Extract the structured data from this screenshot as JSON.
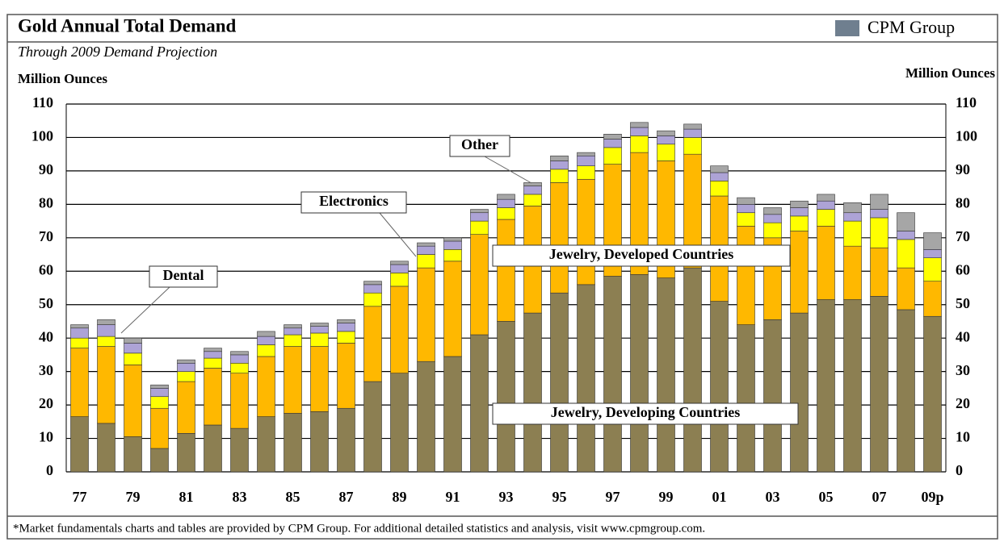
{
  "chart_data": {
    "type": "stacked-bar",
    "title": "Gold Annual Total Demand",
    "logo": "CPM Group",
    "subtitle": "Through 2009 Demand Projection",
    "y_label": "Million Ounces",
    "y2_label": "Million Ounces",
    "footnote": "*Market fundamentals charts and tables are provided by CPM Group. For additional detailed statistics and analysis, visit www.cpmgroup.com.",
    "categories": [
      "77",
      null,
      "79",
      null,
      "81",
      null,
      "83",
      null,
      "85",
      null,
      "87",
      null,
      "89",
      null,
      "91",
      null,
      "93",
      null,
      "95",
      null,
      "97",
      null,
      "99",
      null,
      "01",
      null,
      "03",
      null,
      "05",
      null,
      "07",
      null,
      "09p"
    ],
    "ylim": [
      0,
      110
    ],
    "yticks": [
      0,
      10,
      20,
      30,
      40,
      50,
      60,
      70,
      80,
      90,
      100,
      110
    ],
    "y2lim": [
      0,
      110
    ],
    "y2ticks": [
      0,
      10,
      20,
      30,
      40,
      50,
      60,
      70,
      80,
      90,
      100,
      110
    ],
    "grid": true,
    "series": [
      {
        "name": "Jewelry, Developing Countries",
        "color": "#8c7f52",
        "values": [
          16.5,
          14.5,
          10.5,
          7,
          11.5,
          14,
          13,
          16.5,
          17.5,
          18,
          19,
          27,
          29.5,
          33,
          34.5,
          41,
          45,
          47.5,
          53.5,
          56,
          58.5,
          59,
          58,
          61,
          51,
          44,
          45.5,
          47.5,
          51.5,
          51.5,
          52.5,
          48.5,
          46.5
        ]
      },
      {
        "name": "Jewelry, Developed Countries",
        "color": "#ffb800",
        "values": [
          20.5,
          23,
          21.5,
          12,
          15.5,
          17,
          16.5,
          18,
          20,
          19.5,
          19.5,
          22.5,
          26,
          28,
          28.5,
          30,
          30.5,
          32,
          33,
          31.5,
          33.5,
          36.5,
          35,
          34,
          31.5,
          29.5,
          24.5,
          24.5,
          22,
          16,
          14.5,
          12.5,
          10.5
        ]
      },
      {
        "name": "Electronics",
        "color": "#ffff00",
        "values": [
          3,
          3,
          3.5,
          3.5,
          3,
          3,
          3,
          3.5,
          3.5,
          4,
          3.5,
          4,
          4,
          4,
          3.5,
          4,
          3.5,
          3.5,
          4,
          4,
          5,
          5,
          5,
          5,
          4.5,
          4,
          4.5,
          4.5,
          5,
          7.5,
          9,
          8.5,
          7
        ]
      },
      {
        "name": "Dental",
        "color": "#ada3d6",
        "values": [
          3,
          3.5,
          3,
          2.5,
          2.5,
          2,
          2.5,
          2.5,
          2,
          2,
          2.5,
          2.5,
          2.5,
          2.5,
          2.5,
          2.5,
          2.5,
          2.5,
          2.5,
          3,
          2.5,
          2.5,
          2.5,
          2.5,
          2.5,
          2.5,
          2.5,
          2.5,
          2.5,
          2.5,
          2.5,
          2.5,
          2.5
        ]
      },
      {
        "name": "Other",
        "color": "#a6a6a6",
        "values": [
          1,
          1.5,
          1.5,
          1,
          1,
          1,
          1,
          1.5,
          1,
          1,
          1,
          1,
          1,
          1,
          1,
          1,
          1.5,
          1,
          1.5,
          1,
          1.5,
          1.5,
          1.5,
          1.5,
          2,
          2,
          2,
          2,
          2,
          3,
          4.5,
          5.5,
          5
        ]
      }
    ]
  }
}
